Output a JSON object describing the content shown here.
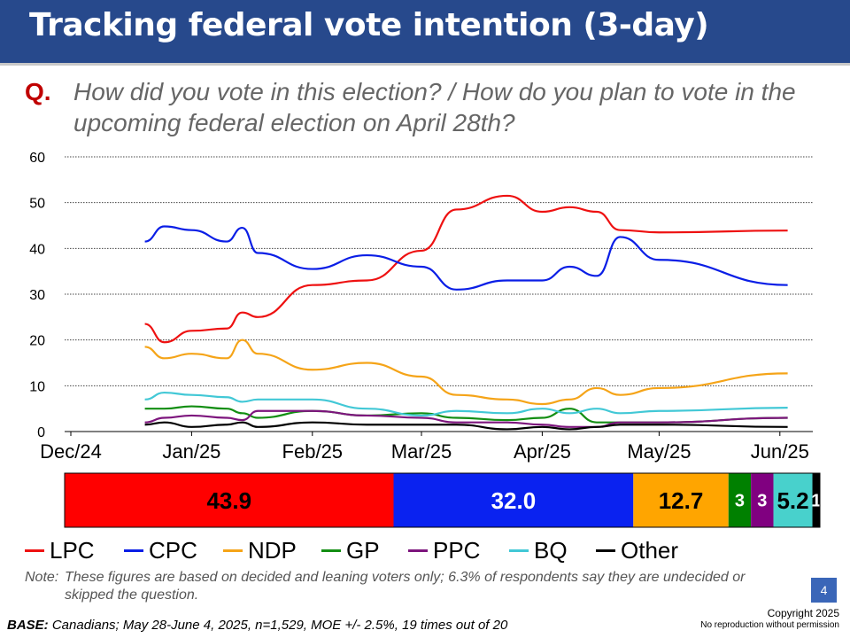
{
  "title": "Tracking federal vote intention (3-day)",
  "question": {
    "label": "Q.",
    "text": "How did you vote in this election? / How do you plan to vote in the upcoming federal election on April 28th?"
  },
  "chart_data": [
    {
      "type": "line",
      "title": "",
      "xlabel": "",
      "ylabel": "",
      "ylim": [
        0,
        60
      ],
      "yticks": [
        0,
        10,
        20,
        30,
        40,
        50,
        60
      ],
      "xticks": [
        "Dec/24",
        "Jan/25",
        "Feb/25",
        "Mar/25",
        "Apr/25",
        "May/25",
        "Jun/25"
      ],
      "grid": "horizontal dotted",
      "legend": "bottom",
      "x": [
        "Dec 20",
        "Dec 25",
        "Jan 1",
        "Jan 10",
        "Jan 14",
        "Jan 18",
        "Feb 1",
        "Feb 15",
        "Mar 1",
        "Mar 10",
        "Mar 23",
        "Apr 1",
        "Apr 8",
        "Apr 15",
        "Apr 21",
        "May 1",
        "Jun 3"
      ],
      "series": [
        {
          "name": "LPC",
          "color": "#ee1111",
          "values": [
            23.5,
            19.5,
            22,
            22.5,
            26,
            25,
            32,
            33,
            39.5,
            48.5,
            51.5,
            48,
            49,
            48,
            44,
            43.5,
            43.9
          ]
        },
        {
          "name": "CPC",
          "color": "#0a1ee6",
          "values": [
            41.5,
            44.8,
            44,
            41.5,
            44.5,
            39,
            35.5,
            38.5,
            36,
            31,
            33,
            33,
            36,
            34,
            42.5,
            37.5,
            32.0
          ]
        },
        {
          "name": "NDP",
          "color": "#f5a418",
          "values": [
            18.5,
            16,
            17,
            16,
            20,
            17,
            13.5,
            15,
            12,
            8,
            7,
            6,
            7,
            9.5,
            8,
            9.5,
            12.7
          ]
        },
        {
          "name": "GP",
          "color": "#138e13",
          "values": [
            5,
            5,
            5.5,
            5,
            4,
            3,
            4.5,
            3.5,
            4,
            3,
            2.5,
            3,
            5,
            2,
            2,
            2,
            3
          ]
        },
        {
          "name": "PPC",
          "color": "#7d157d",
          "values": [
            2,
            3,
            3.5,
            3,
            2.5,
            4.5,
            4.5,
            3.5,
            3,
            2,
            2,
            1.5,
            1,
            1,
            2,
            2,
            3
          ]
        },
        {
          "name": "BQ",
          "color": "#42c8d6",
          "values": [
            7,
            8.5,
            8,
            7.5,
            6.5,
            7,
            7,
            5,
            3.5,
            4.5,
            4,
            5,
            4,
            5,
            4,
            4.5,
            5.2
          ]
        },
        {
          "name": "Other",
          "color": "#000000",
          "values": [
            1.5,
            2,
            1,
            1.5,
            2,
            1,
            2,
            1.5,
            1.5,
            1.5,
            0.5,
            1,
            0.5,
            1,
            1.5,
            1.5,
            1
          ]
        }
      ]
    },
    {
      "type": "bar",
      "orientation": "horizontal stacked",
      "categories": [
        "LPC",
        "CPC",
        "NDP",
        "GP",
        "PPC",
        "BQ",
        "Other"
      ],
      "values": [
        43.9,
        32.0,
        12.7,
        3,
        3,
        5.2,
        1
      ],
      "labels": [
        "43.9",
        "32.0",
        "12.7",
        "3",
        "3",
        "5.2",
        "1"
      ],
      "colors": [
        "#ff0000",
        "#0a22f0",
        "#ffa500",
        "#008000",
        "#800080",
        "#48d1cc",
        "#000000"
      ],
      "label_colors": [
        "#000000",
        "#ffffff",
        "#000000",
        "#ffffff",
        "#ffffff",
        "#000000",
        "#ffffff"
      ]
    }
  ],
  "legend": [
    "LPC",
    "CPC",
    "NDP",
    "GP",
    "PPC",
    "BQ",
    "Other"
  ],
  "note": {
    "label": "Note:",
    "text": "These figures are based on decided and leaning voters only; 6.3% of respondents say they are undecided or skipped the question."
  },
  "base": {
    "label": "BASE:",
    "text": " Canadians; May 28-June 4, 2025, n=1,529, MOE +/- 2.5%, 19 times out of 20"
  },
  "page_number": "4",
  "copyright": "Copyright 2025",
  "copyright_sub": "No reproduction without permission"
}
